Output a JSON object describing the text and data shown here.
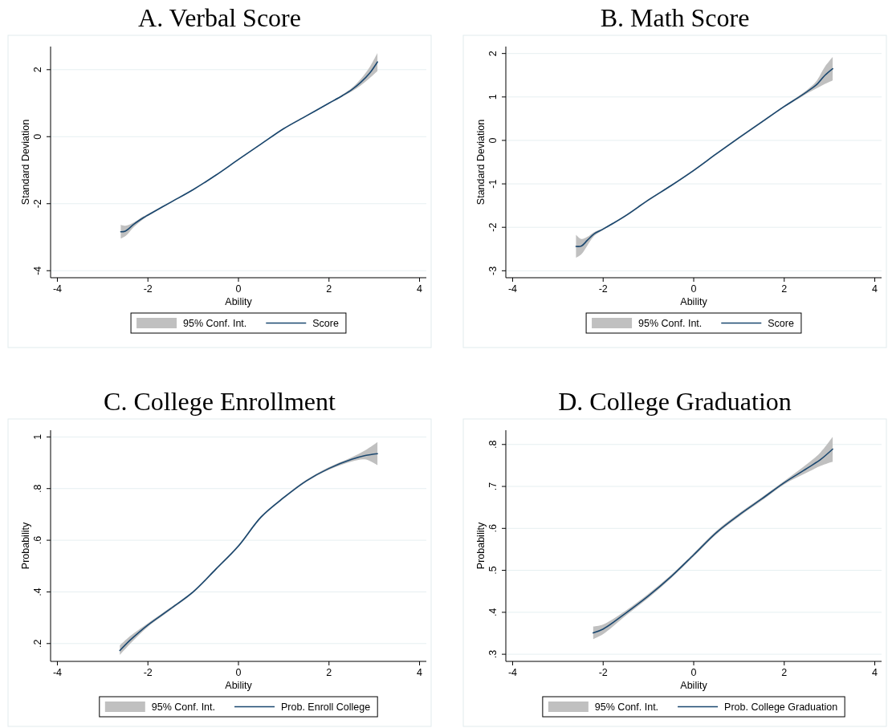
{
  "chart_data": [
    {
      "type": "line",
      "title": "A. Verbal Score",
      "xlabel": "Ability",
      "ylabel": "Standard Deviation",
      "xlim": [
        -4.15,
        4.15
      ],
      "xticks": [
        -4,
        -2,
        0,
        2,
        4
      ],
      "ylim": [
        -4.21,
        2.69
      ],
      "yticks": [
        -4,
        -2,
        0,
        2
      ],
      "grid": "y",
      "legend": "bottom",
      "series": [
        {
          "name": "95% Conf. Int.",
          "type": "area",
          "color": "#c0c0c0"
        },
        {
          "name": "Score",
          "color": "#1a476f",
          "x": [
            -2.6,
            -2.5,
            -2.3,
            -2.1,
            -2,
            -1.5,
            -1,
            -0.5,
            0,
            0.5,
            1,
            1.5,
            2,
            2.3,
            2.5,
            2.7,
            2.9,
            3.07
          ],
          "values": [
            -2.84,
            -2.82,
            -2.6,
            -2.42,
            -2.34,
            -1.96,
            -1.58,
            -1.15,
            -0.68,
            -0.22,
            0.24,
            0.62,
            1.0,
            1.23,
            1.4,
            1.62,
            1.9,
            2.23
          ],
          "lower": [
            -3.04,
            -2.97,
            -2.68,
            -2.46,
            -2.37,
            -1.98,
            -1.6,
            -1.17,
            -0.7,
            -0.24,
            0.22,
            0.6,
            0.98,
            1.2,
            1.35,
            1.53,
            1.75,
            1.96
          ],
          "upper": [
            -2.63,
            -2.66,
            -2.55,
            -2.38,
            -2.31,
            -1.94,
            -1.56,
            -1.13,
            -0.66,
            -0.2,
            0.26,
            0.64,
            1.02,
            1.26,
            1.45,
            1.72,
            2.08,
            2.5
          ]
        }
      ]
    },
    {
      "type": "line",
      "title": "B. Math Score",
      "xlabel": "Ability",
      "ylabel": "Standard Deviation",
      "xlim": [
        -4.15,
        4.15
      ],
      "xticks": [
        -4,
        -2,
        0,
        2,
        4
      ],
      "ylim": [
        -3.16,
        2.16
      ],
      "yticks": [
        -3,
        -2,
        -1,
        0,
        1,
        2
      ],
      "grid": "y",
      "legend": "bottom",
      "series": [
        {
          "name": "95% Conf. Int.",
          "type": "area",
          "color": "#c0c0c0"
        },
        {
          "name": "Score",
          "color": "#1a476f",
          "x": [
            -2.6,
            -2.48,
            -2.35,
            -2.2,
            -2,
            -1.5,
            -1,
            -0.5,
            0,
            0.5,
            1,
            1.5,
            2,
            2.3,
            2.5,
            2.7,
            2.9,
            3.07
          ],
          "values": [
            -2.44,
            -2.43,
            -2.3,
            -2.15,
            -2.04,
            -1.73,
            -1.37,
            -1.04,
            -0.69,
            -0.31,
            0.06,
            0.42,
            0.78,
            0.98,
            1.12,
            1.27,
            1.5,
            1.65
          ],
          "lower": [
            -2.7,
            -2.62,
            -2.42,
            -2.2,
            -2.06,
            -1.75,
            -1.39,
            -1.06,
            -0.71,
            -0.33,
            0.04,
            0.4,
            0.76,
            0.95,
            1.08,
            1.19,
            1.3,
            1.38
          ],
          "upper": [
            -2.17,
            -2.27,
            -2.22,
            -2.11,
            -2.02,
            -1.71,
            -1.35,
            -1.02,
            -0.67,
            -0.29,
            0.08,
            0.44,
            0.8,
            1.01,
            1.16,
            1.35,
            1.7,
            1.92
          ]
        }
      ]
    },
    {
      "type": "line",
      "title": "C. College Enrollment",
      "xlabel": "Ability",
      "ylabel": "Probability",
      "xlim": [
        -4.15,
        4.15
      ],
      "xticks": [
        -4,
        -2,
        0,
        2,
        4
      ],
      "ylim": [
        0.131,
        1.026
      ],
      "yticks": [
        {
          "value": 0.2,
          "label": ".2"
        },
        {
          "value": 0.4,
          "label": ".4"
        },
        {
          "value": 0.6,
          "label": ".6"
        },
        {
          "value": 0.8,
          "label": ".8"
        },
        1
      ],
      "grid": "y",
      "legend": "bottom",
      "series": [
        {
          "name": "95% Conf. Int.",
          "type": "area",
          "color": "#c0c0c0"
        },
        {
          "name": "Prob. Enroll College",
          "color": "#1a476f",
          "x": [
            -2.62,
            -2.4,
            -2.2,
            -2,
            -1.5,
            -1,
            -0.5,
            0,
            0.5,
            1,
            1.5,
            2,
            2.5,
            2.8,
            3.07
          ],
          "values": [
            0.173,
            0.212,
            0.243,
            0.272,
            0.335,
            0.4,
            0.488,
            0.578,
            0.69,
            0.765,
            0.83,
            0.878,
            0.913,
            0.928,
            0.935
          ],
          "lower": [
            0.156,
            0.198,
            0.233,
            0.265,
            0.33,
            0.396,
            0.484,
            0.574,
            0.686,
            0.761,
            0.826,
            0.873,
            0.905,
            0.913,
            0.89
          ],
          "upper": [
            0.193,
            0.228,
            0.254,
            0.279,
            0.34,
            0.404,
            0.492,
            0.582,
            0.694,
            0.769,
            0.834,
            0.883,
            0.921,
            0.948,
            0.98
          ]
        }
      ]
    },
    {
      "type": "line",
      "title": "D. College Graduation",
      "xlabel": "Ability",
      "ylabel": "Probability",
      "xlim": [
        -4.15,
        4.15
      ],
      "xticks": [
        -4,
        -2,
        0,
        2,
        4
      ],
      "ylim": [
        0.283,
        0.834
      ],
      "yticks": [
        {
          "value": 0.3,
          "label": ".3"
        },
        {
          "value": 0.4,
          "label": ".4"
        },
        {
          "value": 0.5,
          "label": ".5"
        },
        {
          "value": 0.6,
          "label": ".6"
        },
        {
          "value": 0.7,
          "label": ".7"
        },
        {
          "value": 0.8,
          "label": ".8"
        }
      ],
      "grid": "y",
      "legend": "bottom",
      "series": [
        {
          "name": "95% Conf. Int.",
          "type": "area",
          "color": "#c0c0c0"
        },
        {
          "name": "Prob. College Graduation",
          "color": "#1a476f",
          "x": [
            -2.22,
            -2,
            -1.5,
            -1,
            -0.5,
            0,
            0.5,
            1,
            1.5,
            2,
            2.5,
            2.8,
            3.07
          ],
          "values": [
            0.351,
            0.36,
            0.398,
            0.439,
            0.485,
            0.537,
            0.59,
            0.632,
            0.67,
            0.709,
            0.743,
            0.764,
            0.789
          ],
          "lower": [
            0.336,
            0.348,
            0.392,
            0.434,
            0.481,
            0.533,
            0.586,
            0.628,
            0.666,
            0.705,
            0.733,
            0.749,
            0.759
          ],
          "upper": [
            0.366,
            0.371,
            0.404,
            0.444,
            0.489,
            0.541,
            0.594,
            0.636,
            0.674,
            0.713,
            0.753,
            0.781,
            0.818
          ]
        }
      ]
    }
  ]
}
